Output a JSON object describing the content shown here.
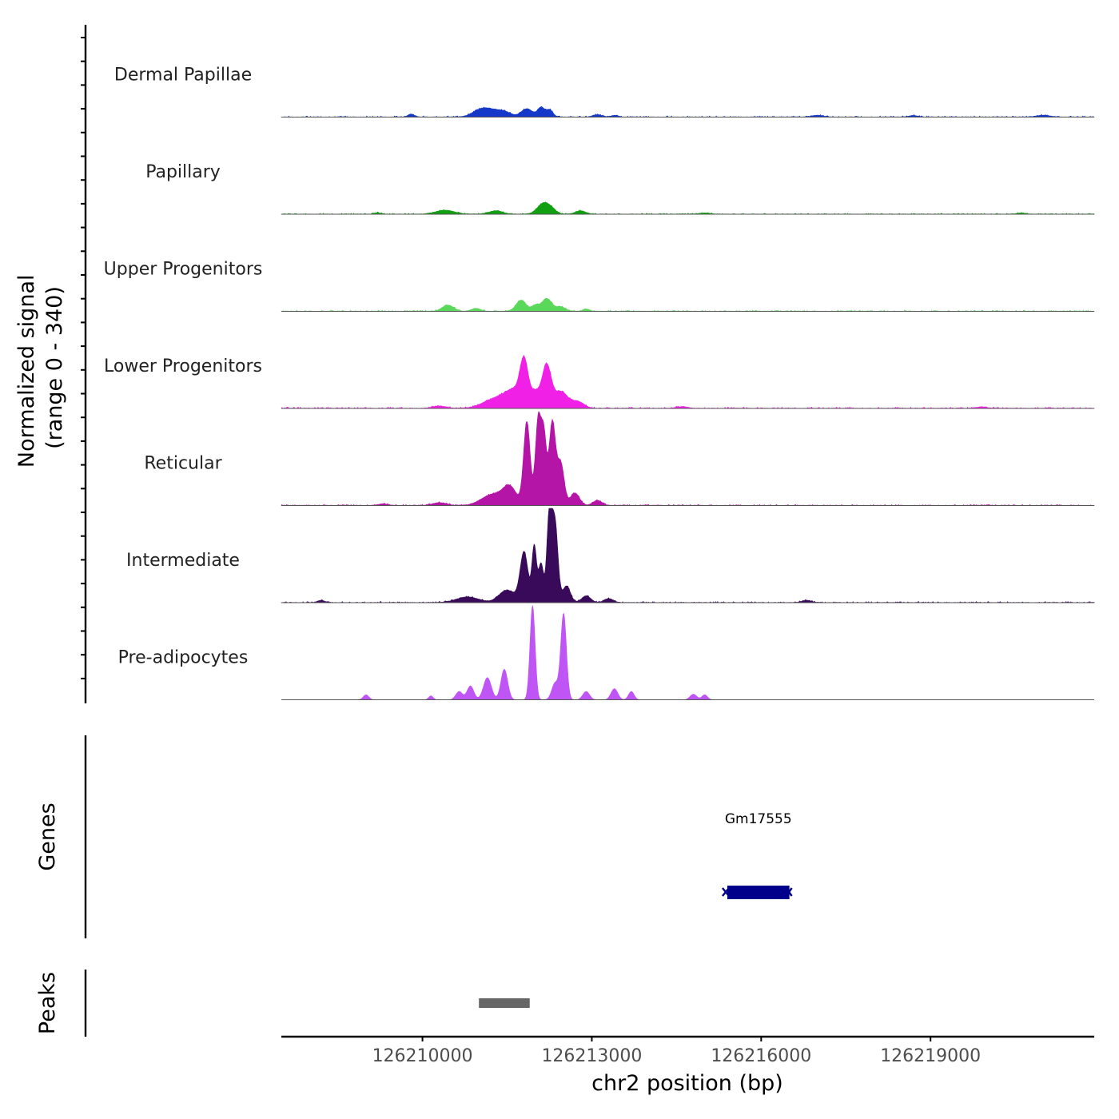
{
  "chart_data": {
    "type": "area",
    "title": "",
    "signal_axis_label_line1": "Normalized signal",
    "signal_axis_label_line2": "(range 0 - 340)",
    "ylim": [
      0,
      340
    ],
    "xlabel": "chr2 position (bp)",
    "xlim": [
      126207500,
      126221900
    ],
    "x_ticks": [
      126210000,
      126213000,
      126216000,
      126219000
    ],
    "x_tick_labels": [
      "126210000",
      "126213000",
      "126216000",
      "126219000"
    ],
    "tracks": [
      {
        "name": "Dermal Papillae",
        "color": "#1538c8",
        "peaks": [
          [
            126209800,
            10,
            60
          ],
          [
            126211000,
            20,
            140
          ],
          [
            126211200,
            22,
            140
          ],
          [
            126211450,
            18,
            120
          ],
          [
            126211850,
            30,
            100
          ],
          [
            126212100,
            34,
            60
          ],
          [
            126212250,
            26,
            60
          ],
          [
            126213100,
            8,
            80
          ],
          [
            126213400,
            6,
            60
          ],
          [
            126217000,
            6,
            100
          ],
          [
            126218700,
            5,
            80
          ],
          [
            126221000,
            6,
            120
          ]
        ],
        "baseline": 0.012
      },
      {
        "name": "Papillary",
        "color": "#11a011",
        "peaks": [
          [
            126209200,
            5,
            60
          ],
          [
            126210400,
            14,
            160
          ],
          [
            126211300,
            12,
            120
          ],
          [
            126212150,
            40,
            110
          ],
          [
            126212300,
            10,
            80
          ],
          [
            126212800,
            12,
            90
          ],
          [
            126215000,
            4,
            100
          ],
          [
            126220600,
            4,
            80
          ]
        ],
        "baseline": 0.01
      },
      {
        "name": "Upper Progenitors",
        "color": "#5ad85a",
        "peaks": [
          [
            126210450,
            22,
            100
          ],
          [
            126210950,
            10,
            80
          ],
          [
            126211750,
            40,
            90
          ],
          [
            126212000,
            20,
            60
          ],
          [
            126212200,
            46,
            90
          ],
          [
            126212450,
            16,
            80
          ],
          [
            126212900,
            8,
            60
          ]
        ],
        "baseline": 0.012
      },
      {
        "name": "Lower Progenitors",
        "color": "#f020e6",
        "peaks": [
          [
            126211300,
            34,
            220
          ],
          [
            126211650,
            60,
            170
          ],
          [
            126211800,
            140,
            70
          ],
          [
            126212000,
            50,
            90
          ],
          [
            126212200,
            150,
            80
          ],
          [
            126212450,
            60,
            120
          ],
          [
            126212750,
            24,
            110
          ],
          [
            126210300,
            8,
            120
          ],
          [
            126214600,
            6,
            100
          ],
          [
            126219900,
            5,
            100
          ]
        ],
        "baseline": 0.014
      },
      {
        "name": "Reticular",
        "color": "#b515a6",
        "peaks": [
          [
            126211250,
            40,
            200
          ],
          [
            126211550,
            60,
            120
          ],
          [
            126211850,
            300,
            58
          ],
          [
            126212050,
            310,
            50
          ],
          [
            126212150,
            240,
            45
          ],
          [
            126212300,
            300,
            58
          ],
          [
            126212450,
            150,
            60
          ],
          [
            126212700,
            45,
            80
          ],
          [
            126213100,
            18,
            80
          ],
          [
            126210300,
            10,
            120
          ],
          [
            126209300,
            6,
            80
          ]
        ],
        "baseline": 0.012
      },
      {
        "name": "Intermediate",
        "color": "#3a0a5a",
        "peaks": [
          [
            126210800,
            20,
            200
          ],
          [
            126211500,
            45,
            140
          ],
          [
            126211800,
            180,
            70
          ],
          [
            126211980,
            200,
            40
          ],
          [
            126212100,
            140,
            45
          ],
          [
            126212250,
            330,
            45
          ],
          [
            126212350,
            280,
            50
          ],
          [
            126212550,
            60,
            70
          ],
          [
            126212900,
            24,
            80
          ],
          [
            126213300,
            14,
            80
          ],
          [
            126208200,
            8,
            60
          ],
          [
            126216800,
            8,
            80
          ]
        ],
        "baseline": 0.012
      },
      {
        "name": "Pre-adipocytes",
        "color": "#c055f5",
        "peaks": [
          [
            126209000,
            18,
            50
          ],
          [
            126210150,
            14,
            40
          ],
          [
            126210650,
            30,
            60
          ],
          [
            126210850,
            50,
            60
          ],
          [
            126211150,
            80,
            70
          ],
          [
            126211450,
            110,
            60
          ],
          [
            126211950,
            340,
            45
          ],
          [
            126212500,
            310,
            50
          ],
          [
            126212350,
            60,
            60
          ],
          [
            126212900,
            30,
            60
          ],
          [
            126213400,
            40,
            60
          ],
          [
            126213700,
            30,
            50
          ],
          [
            126214800,
            20,
            60
          ],
          [
            126215000,
            18,
            50
          ]
        ],
        "baseline": 0.0
      }
    ],
    "genes_label": "Genes",
    "genes": [
      {
        "name": "Gm17555",
        "start": 126215400,
        "end": 126216500,
        "strand": "-",
        "color": "#00008b"
      }
    ],
    "peaks_label": "Peaks",
    "peak_regions": [
      {
        "start": 126211000,
        "end": 126211900,
        "color": "#666666"
      }
    ]
  }
}
